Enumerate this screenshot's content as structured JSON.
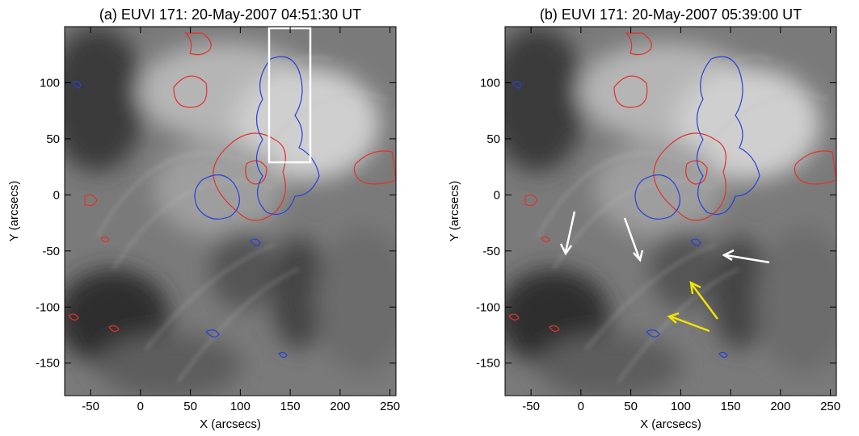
{
  "chart_data": [
    {
      "type": "image",
      "title": "(a) EUVI 171: 20-May-2007 04:51:30 UT",
      "xlabel": "X (arcsecs)",
      "ylabel": "Y (arcsecs)",
      "xlim": [
        -76,
        256
      ],
      "ylim": [
        -179,
        150
      ],
      "xticks": [
        -50,
        0,
        50,
        100,
        150,
        200,
        250
      ],
      "yticks": [
        -150,
        -100,
        -50,
        0,
        50,
        100
      ]
    },
    {
      "type": "image",
      "title": "(b) EUVI 171: 20-May-2007 05:39:00 UT",
      "xlabel": "X (arcsecs)",
      "ylabel": "Y (arcsecs)",
      "xlim": [
        -76,
        256
      ],
      "ylim": [
        -179,
        150
      ],
      "xticks": [
        -50,
        0,
        50,
        100,
        150,
        200,
        250
      ],
      "yticks": [
        -150,
        -100,
        -50,
        0,
        50,
        100
      ]
    }
  ]
}
